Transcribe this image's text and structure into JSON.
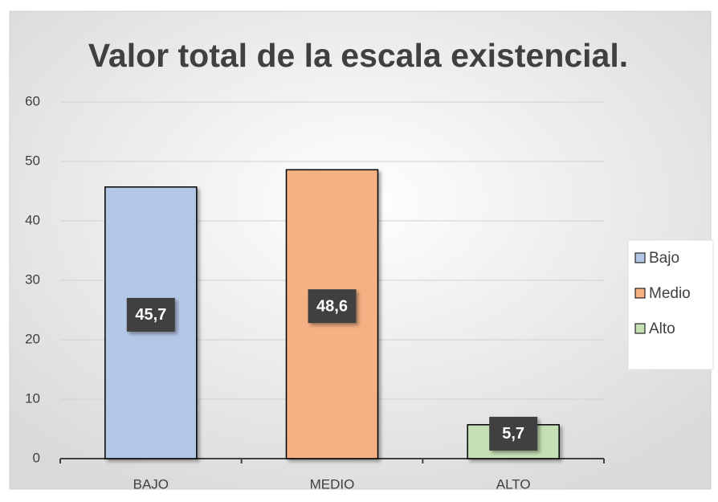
{
  "chart_data": {
    "type": "bar",
    "title": "Valor total de la escala existencial.",
    "categories": [
      "BAJO",
      "MEDIO",
      "ALTO"
    ],
    "series": [
      {
        "name": "Bajo",
        "color": "#b4c7e7",
        "values": [
          45.7,
          null,
          null
        ],
        "value_labels": [
          "45,7",
          null,
          null
        ]
      },
      {
        "name": "Medio",
        "color": "#f4b183",
        "values": [
          null,
          48.6,
          null
        ],
        "value_labels": [
          null,
          "48,6",
          null
        ]
      },
      {
        "name": "Alto",
        "color": "#c5e0b4",
        "values": [
          null,
          null,
          5.7
        ],
        "value_labels": [
          null,
          null,
          "5,7"
        ]
      }
    ],
    "ylim": [
      0,
      60
    ],
    "yticks": [
      0,
      10,
      20,
      30,
      40,
      50,
      60
    ],
    "grid": true,
    "legend": "right"
  }
}
